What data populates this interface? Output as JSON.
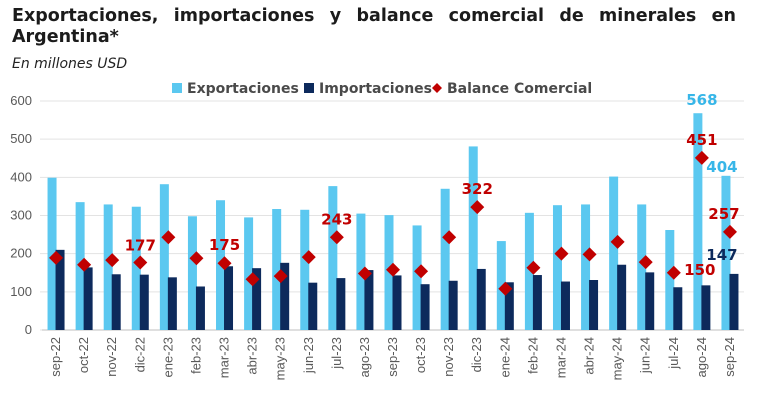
{
  "title": "Exportaciones, importaciones y balance comercial de minerales en Argentina*",
  "subtitle": "En millones USD",
  "chart_data": {
    "type": "bar",
    "categories": [
      "sep-22",
      "oct-22",
      "nov-22",
      "dic-22",
      "ene-23",
      "feb-23",
      "mar-23",
      "abr-23",
      "may-23",
      "jun-23",
      "jul-23",
      "ago-23",
      "sep-23",
      "oct-23",
      "nov-23",
      "dic-23",
      "ene-24",
      "feb-24",
      "mar-24",
      "abr-24",
      "may-24",
      "jun-24",
      "jul-24",
      "ago-24",
      "sep-24"
    ],
    "series": [
      {
        "name": "Exportaciones",
        "kind": "bar",
        "color": "#5BC8F0",
        "values": [
          399,
          335,
          329,
          323,
          382,
          298,
          340,
          295,
          317,
          315,
          377,
          305,
          301,
          274,
          370,
          481,
          233,
          307,
          327,
          329,
          402,
          329,
          262,
          568,
          404
        ]
      },
      {
        "name": "Importaciones",
        "kind": "bar",
        "color": "#0D2A5C",
        "values": [
          210,
          164,
          146,
          145,
          138,
          114,
          167,
          162,
          176,
          124,
          136,
          157,
          143,
          120,
          129,
          160,
          125,
          144,
          127,
          131,
          171,
          151,
          112,
          117,
          147
        ]
      },
      {
        "name": "Balance Comercial",
        "kind": "marker",
        "color": "#C00000",
        "values": [
          189,
          171,
          183,
          177,
          243,
          188,
          175,
          133,
          141,
          191,
          243,
          148,
          158,
          154,
          243,
          322,
          108,
          163,
          200,
          198,
          231,
          178,
          150,
          451,
          257
        ]
      }
    ],
    "data_labels": [
      {
        "series": "Balance Comercial",
        "category": "dic-22",
        "text": "177"
      },
      {
        "series": "Balance Comercial",
        "category": "mar-23",
        "text": "175"
      },
      {
        "series": "Balance Comercial",
        "category": "jul-23",
        "text": "243"
      },
      {
        "series": "Balance Comercial",
        "category": "dic-23",
        "text": "322"
      },
      {
        "series": "Balance Comercial",
        "category": "jul-24",
        "text": "150"
      },
      {
        "series": "Balance Comercial",
        "category": "ago-24",
        "text": "451"
      },
      {
        "series": "Exportaciones",
        "category": "ago-24",
        "text": "568"
      },
      {
        "series": "Exportaciones",
        "category": "sep-24",
        "text": "404"
      },
      {
        "series": "Balance Comercial",
        "category": "sep-24",
        "text": "257"
      },
      {
        "series": "Importaciones",
        "category": "sep-24",
        "text": "147"
      }
    ],
    "ylim": [
      0,
      600
    ],
    "yticks": [
      0,
      100,
      200,
      300,
      400,
      500,
      600
    ],
    "grid": true,
    "legend": "top-center"
  }
}
